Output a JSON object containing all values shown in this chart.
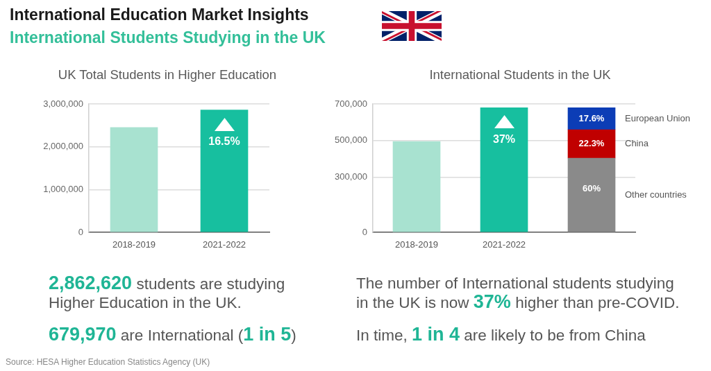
{
  "chart_data": [
    {
      "type": "other",
      "title": "International Education Market Insights",
      "subtitle": "International Students Studying in the UK",
      "annotations": [
        "Source: HESA Higher Education Statistics Agency (UK)"
      ]
    },
    {
      "type": "bar",
      "title": "UK Total Students in Higher Education",
      "categories": [
        "2018-2019",
        "2021-2022"
      ],
      "values": [
        2450000,
        2860000
      ],
      "colors": [
        "#a8e2d0",
        "#17bf9f"
      ],
      "ylim": [
        0,
        3000000
      ],
      "yticks": [
        {
          "value": 0,
          "label": "0"
        },
        {
          "value": 1000000,
          "label": "1,000,000"
        },
        {
          "value": 2000000,
          "label": "2,000,000"
        },
        {
          "value": 3000000,
          "label": "3,000,000"
        }
      ],
      "grid": "y",
      "annotations": [
        {
          "text": "16.5%",
          "x": "2021-2022",
          "y": 2860000
        },
        "2,862,620 students are studying Higher Education in the UK.",
        "679,970 are International (1 in 5)"
      ]
    },
    {
      "type": "bar",
      "title": "International Students in the UK",
      "categories": [
        "2018-2019",
        "2021-2022",
        null
      ],
      "stacked": true,
      "series": [
        {
          "colors": [
            "#a8e2d0",
            "#17bf9f",
            null
          ],
          "values": [
            495000,
            680000,
            null
          ]
        },
        {
          "name": "Other countries",
          "color": "#8a8a8a",
          "values": [
            null,
            null,
            405000
          ]
        },
        {
          "name": "China",
          "color": "#c00000",
          "values": [
            null,
            null,
            155000
          ]
        },
        {
          "name": "European Union",
          "color": "#0c3db6",
          "values": [
            null,
            null,
            120000
          ]
        }
      ],
      "ylim": [
        0,
        700000
      ],
      "yticks": [
        {
          "value": 0,
          "label": "0"
        },
        {
          "value": 300000,
          "label": "300,000"
        },
        {
          "value": 500000,
          "label": "500,000"
        },
        {
          "value": 700000,
          "label": "700,000"
        }
      ],
      "grid": "y",
      "annotations": [
        {
          "text": "37%",
          "x": "2021-2022",
          "y": 680000
        },
        {
          "text": "60%",
          "y": 405000
        },
        {
          "text": "22.3%",
          "y": 560000
        },
        {
          "text": "17.6%",
          "y": 680000
        },
        "The number of International students studying in the UK is now 37% higher than pre-COVID.",
        "In time, 1 in 4 are likely to be from China"
      ]
    }
  ]
}
